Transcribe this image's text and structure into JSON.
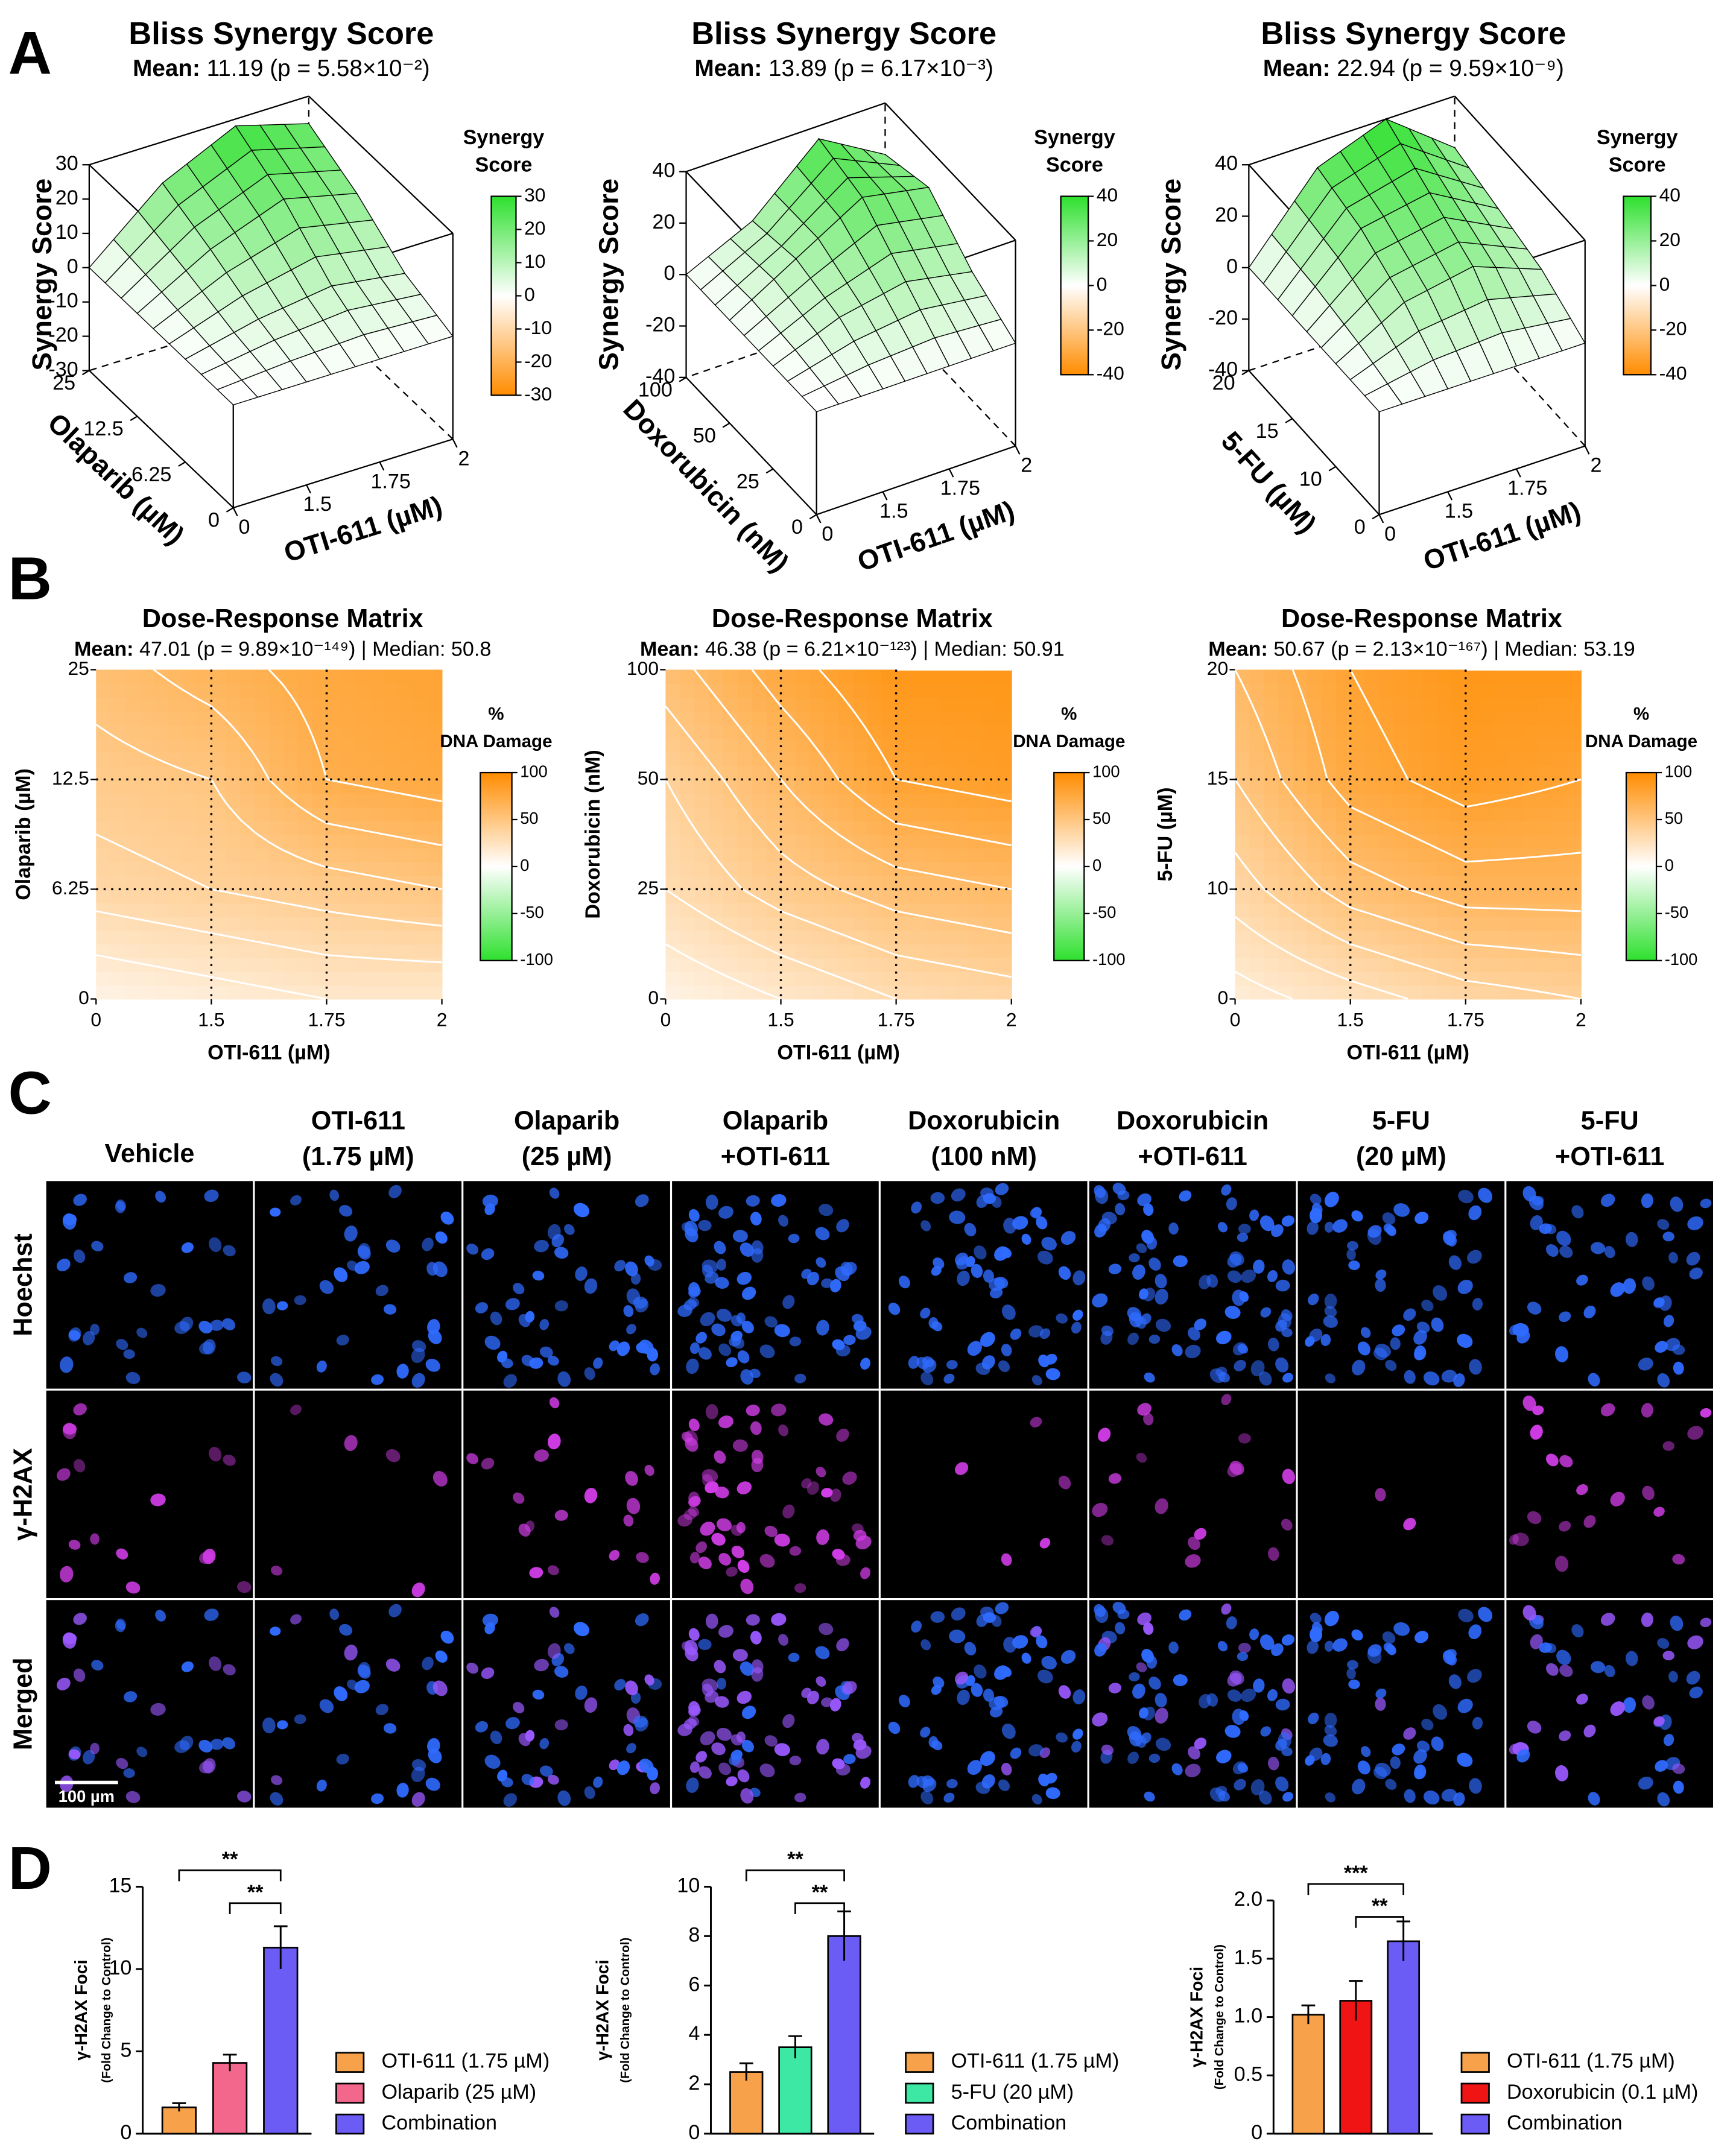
{
  "panel_labels": [
    "A",
    "B",
    "C",
    "D"
  ],
  "chart_data": [
    {
      "type": "surface",
      "title": "Bliss Synergy Score",
      "mean_label": "Mean:",
      "mean_text": "11.19 (p = 5.58×10⁻²)",
      "x_label": "OTI-611 (µM)",
      "y_label": "Olaparib (µM)",
      "z_label": "Synergy Score",
      "x": [
        "0",
        "1.5",
        "1.75",
        "2"
      ],
      "y": [
        "0",
        "6.25",
        "12.5",
        "25"
      ],
      "values": [
        [
          0,
          0,
          0,
          0
        ],
        [
          0,
          5,
          8,
          5
        ],
        [
          0,
          12,
          20,
          15
        ],
        [
          0,
          18,
          28,
          22
        ]
      ],
      "zlim": [
        -30,
        30
      ],
      "zticks": [
        -30,
        -20,
        -10,
        0,
        10,
        20,
        30
      ],
      "colorbar_title": [
        "Synergy",
        "Score"
      ],
      "colorbar_ticks": [
        -30,
        -20,
        -10,
        0,
        10,
        20,
        30
      ],
      "colors": [
        "#ff8c00",
        "#ffffff",
        "#2ee02e"
      ]
    },
    {
      "type": "surface",
      "title": "Bliss Synergy Score",
      "mean_label": "Mean:",
      "mean_text": "13.89 (p = 6.17×10⁻³)",
      "x_label": "OTI-611 (µM)",
      "y_label": "Doxorubicin (nM)",
      "z_label": "Synergy Score",
      "x": [
        "0",
        "1.5",
        "1.75",
        "2"
      ],
      "y": [
        "0",
        "25",
        "50",
        "100"
      ],
      "values": [
        [
          0,
          0,
          0,
          0
        ],
        [
          0,
          10,
          15,
          10
        ],
        [
          0,
          15,
          30,
          25
        ],
        [
          0,
          12,
          35,
          20
        ]
      ],
      "zlim": [
        -40,
        40
      ],
      "zticks": [
        -40,
        -20,
        0,
        20,
        40
      ],
      "colorbar_title": [
        "Synergy",
        "Score"
      ],
      "colorbar_ticks": [
        -40,
        -20,
        0,
        20,
        40
      ],
      "colors": [
        "#ff8c00",
        "#ffffff",
        "#2ee02e"
      ]
    },
    {
      "type": "surface",
      "title": "Bliss Synergy Score",
      "mean_label": "Mean:",
      "mean_text": "22.94 (p = 9.59×10⁻⁹)",
      "x_label": "OTI-611 (µM)",
      "y_label": "5-FU (µM)",
      "z_label": "Synergy Score",
      "x": [
        "0",
        "1.5",
        "1.75",
        "2"
      ],
      "y": [
        "0",
        "10",
        "15",
        "20"
      ],
      "values": [
        [
          0,
          0,
          0,
          0
        ],
        [
          0,
          15,
          20,
          10
        ],
        [
          0,
          25,
          30,
          15
        ],
        [
          0,
          30,
          40,
          20
        ]
      ],
      "zlim": [
        -40,
        40
      ],
      "zticks": [
        -40,
        -20,
        0,
        20,
        40
      ],
      "colorbar_title": [
        "Synergy",
        "Score"
      ],
      "colorbar_ticks": [
        -40,
        -20,
        0,
        20,
        40
      ],
      "colors": [
        "#ff8c00",
        "#ffffff",
        "#2ee02e"
      ]
    },
    {
      "type": "contour",
      "title": "Dose-Response Matrix",
      "mean_label": "Mean:",
      "mean_text": "47.01 (p = 9.89×10⁻¹⁴⁹) | Median: 50.8",
      "x_label": "OTI-611 (µM)",
      "y_label": "Olaparib (µM)",
      "x": [
        "0",
        "1.5",
        "1.75",
        "2"
      ],
      "y": [
        "0",
        "6.25",
        "12.5",
        "25"
      ],
      "values": [
        [
          10,
          15,
          20,
          20
        ],
        [
          35,
          40,
          45,
          50
        ],
        [
          45,
          50,
          70,
          75
        ],
        [
          55,
          65,
          75,
          80
        ]
      ],
      "zlim": [
        -100,
        100
      ],
      "colorbar_title": [
        "%",
        "DNA Damage"
      ],
      "colorbar_ticks": [
        -100,
        -50,
        0,
        50,
        100
      ],
      "colors": [
        "#2ee02e",
        "#ffffff",
        "#ff8c00"
      ],
      "grid": true
    },
    {
      "type": "contour",
      "title": "Dose-Response Matrix",
      "mean_label": "Mean:",
      "mean_text": "46.38 (p = 6.21×10⁻¹²³) | Median: 50.91",
      "x_label": "OTI-611 (µM)",
      "y_label": "Doxorubicin (nM)",
      "x": [
        "0",
        "1.5",
        "1.75",
        "2"
      ],
      "y": [
        "0",
        "25",
        "50",
        "100"
      ],
      "values": [
        [
          10,
          20,
          30,
          35
        ],
        [
          30,
          45,
          55,
          60
        ],
        [
          40,
          60,
          80,
          85
        ],
        [
          55,
          75,
          90,
          90
        ]
      ],
      "zlim": [
        -100,
        100
      ],
      "colorbar_title": [
        "%",
        "DNA Damage"
      ],
      "colorbar_ticks": [
        -100,
        -50,
        0,
        50,
        100
      ],
      "colors": [
        "#2ee02e",
        "#ffffff",
        "#ff8c00"
      ],
      "grid": true
    },
    {
      "type": "contour",
      "title": "Dose-Response Matrix",
      "mean_label": "Mean:",
      "mean_text": "50.67 (p = 2.13×10⁻¹⁶⁷) | Median: 53.19",
      "x_label": "OTI-611 (µM)",
      "y_label": "5-FU (µM)",
      "x": [
        "0",
        "1.5",
        "1.75",
        "2"
      ],
      "y": [
        "0",
        "10",
        "15",
        "20"
      ],
      "values": [
        [
          15,
          25,
          35,
          40
        ],
        [
          35,
          55,
          65,
          65
        ],
        [
          50,
          75,
          85,
          80
        ],
        [
          60,
          80,
          90,
          90
        ]
      ],
      "zlim": [
        -100,
        100
      ],
      "colorbar_title": [
        "%",
        "DNA Damage"
      ],
      "colorbar_ticks": [
        -100,
        -50,
        0,
        50,
        100
      ],
      "colors": [
        "#2ee02e",
        "#ffffff",
        "#ff8c00"
      ],
      "grid": true
    },
    {
      "type": "bar",
      "y_label": [
        "γ-H2AX Foci",
        "(Fold Change to Control)"
      ],
      "categories": [
        "OTI-611 (1.75 µM)",
        "Olaparib (25 µM)",
        "Combination"
      ],
      "values": [
        1.6,
        4.3,
        11.3
      ],
      "errors": [
        0.25,
        0.5,
        1.3
      ],
      "colors": [
        "#f7a14b",
        "#f4678c",
        "#6b5cf6"
      ],
      "ylim": [
        0,
        15
      ],
      "yticks": [
        0,
        5,
        10,
        15
      ],
      "significance": [
        {
          "label": "**",
          "between": [
            0,
            2
          ]
        },
        {
          "label": "**",
          "between": [
            1,
            2
          ]
        }
      ]
    },
    {
      "type": "bar",
      "y_label": [
        "γ-H2AX Foci",
        "(Fold Change to Control)"
      ],
      "categories": [
        "OTI-611 (1.75 µM)",
        "5-FU (20 µM)",
        "Combination"
      ],
      "values": [
        2.5,
        3.5,
        8.0
      ],
      "errors": [
        0.35,
        0.45,
        1.0
      ],
      "colors": [
        "#f7a14b",
        "#3de8a5",
        "#6b5cf6"
      ],
      "ylim": [
        0,
        10
      ],
      "yticks": [
        0,
        2,
        4,
        6,
        8,
        10
      ],
      "significance": [
        {
          "label": "**",
          "between": [
            0,
            2
          ]
        },
        {
          "label": "**",
          "between": [
            1,
            2
          ]
        }
      ]
    },
    {
      "type": "bar",
      "y_label": [
        "γ-H2AX Foci",
        "(Fold Change to Control)"
      ],
      "categories": [
        "OTI-611 (1.75 µM)",
        "Doxorubicin (0.1 µM)",
        "Combination"
      ],
      "values": [
        1.02,
        1.14,
        1.65
      ],
      "errors": [
        0.08,
        0.17,
        0.17
      ],
      "colors": [
        "#f7a14b",
        "#f01414",
        "#6b5cf6"
      ],
      "ylim": [
        0,
        2
      ],
      "yticks": [
        0,
        0.5,
        {
          "value": 1,
          "label": "1.0"
        },
        1.5,
        {
          "value": 2,
          "label": "2.0"
        }
      ],
      "significance": [
        {
          "label": "***",
          "between": [
            0,
            2
          ]
        },
        {
          "label": "**",
          "between": [
            1,
            2
          ]
        }
      ]
    }
  ],
  "micrographs": {
    "column_headers": [
      [
        "Vehicle"
      ],
      [
        "OTI-611",
        "(1.75 µM)"
      ],
      [
        "Olaparib",
        "(25 µM)"
      ],
      [
        "Olaparib",
        "+OTI-611"
      ],
      [
        "Doxorubicin",
        "(100 nM)"
      ],
      [
        "Doxorubicin",
        "+OTI-611"
      ],
      [
        "5-FU",
        "(20 µM)"
      ],
      [
        "5-FU",
        "+OTI-611"
      ]
    ],
    "row_labels": [
      "Hoechst",
      "γ-H2AX",
      "Merged"
    ],
    "scale_bar": "100 µm"
  }
}
